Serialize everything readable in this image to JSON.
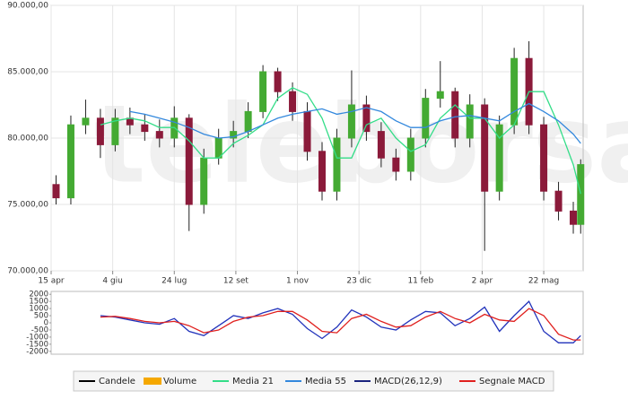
{
  "watermark": "teleborsa",
  "legend": [
    {
      "name": "Candele",
      "color": "#000000"
    },
    {
      "name": "Volume",
      "color": "#f5a800"
    },
    {
      "name": "Media 21",
      "color": "#33dd88"
    },
    {
      "name": "Media 55",
      "color": "#3388dd"
    },
    {
      "name": "MACD(26,12,9)",
      "color": "#1a237e"
    },
    {
      "name": "Segnale MACD",
      "color": "#e0201e"
    }
  ],
  "chart_data": [
    {
      "type": "candlestick",
      "up_color": "#44aa33",
      "down_color": "#8b1a3a",
      "xlim": [
        0,
        432
      ],
      "xticks": [
        {
          "value": 0,
          "label": "15 apr"
        },
        {
          "value": 50,
          "label": "4 giu"
        },
        {
          "value": 100,
          "label": "24 lug"
        },
        {
          "value": 150,
          "label": "12 set"
        },
        {
          "value": 200,
          "label": "1 nov"
        },
        {
          "value": 250,
          "label": "23 dic"
        },
        {
          "value": 300,
          "label": "11 feb"
        },
        {
          "value": 350,
          "label": "2 apr"
        },
        {
          "value": 400,
          "label": "22 mag"
        }
      ],
      "ylim": [
        70000,
        90000
      ],
      "yticks": [
        {
          "value": 70000,
          "label": "70.000,00"
        },
        {
          "value": 75000,
          "label": "75.000,00"
        },
        {
          "value": 80000,
          "label": "80.000,00"
        },
        {
          "value": 85000,
          "label": "85.000,00"
        },
        {
          "value": 90000,
          "label": "90.000,00"
        }
      ],
      "grid": true,
      "x": [
        4,
        16,
        28,
        40,
        52,
        64,
        76,
        88,
        100,
        112,
        124,
        136,
        148,
        160,
        172,
        184,
        196,
        208,
        220,
        232,
        244,
        256,
        268,
        280,
        292,
        304,
        316,
        328,
        340,
        352,
        364,
        376,
        388,
        400,
        412,
        424,
        430
      ],
      "open": [
        76500,
        75500,
        81000,
        81500,
        79500,
        81500,
        81000,
        80500,
        80000,
        81500,
        75000,
        78500,
        80000,
        80500,
        82000,
        85000,
        83500,
        82000,
        79000,
        76000,
        80000,
        82500,
        80500,
        78500,
        77500,
        80000,
        83000,
        83500,
        80000,
        82500,
        76000,
        81000,
        86000,
        81000,
        76000,
        74500,
        73500
      ],
      "high": [
        77200,
        81700,
        82900,
        82200,
        82200,
        82300,
        81800,
        81400,
        82400,
        81800,
        79200,
        80700,
        81300,
        82700,
        85500,
        85300,
        84200,
        82700,
        79700,
        80700,
        85100,
        83200,
        81200,
        79200,
        80700,
        83700,
        85800,
        83800,
        83300,
        83000,
        81700,
        86800,
        87300,
        81600,
        76700,
        75200,
        78400
      ],
      "low": [
        75000,
        75000,
        80300,
        78500,
        79000,
        80300,
        79800,
        79300,
        79300,
        73000,
        74300,
        78000,
        79300,
        80000,
        81500,
        82800,
        81300,
        78300,
        75300,
        75300,
        79300,
        79800,
        77800,
        76800,
        76800,
        79300,
        82300,
        79300,
        79300,
        71500,
        75300,
        80300,
        80300,
        75300,
        73800,
        72800,
        72800
      ],
      "close": [
        75500,
        81000,
        81500,
        79500,
        81500,
        81000,
        80500,
        80000,
        81500,
        75000,
        78500,
        80000,
        80500,
        82000,
        85000,
        83500,
        82000,
        79000,
        76000,
        80000,
        82500,
        80500,
        78500,
        77500,
        80000,
        83000,
        83500,
        80000,
        82500,
        76000,
        81000,
        86000,
        81000,
        76000,
        74500,
        73500,
        78000
      ],
      "series": [
        {
          "name": "Media 21",
          "color": "#33dd88",
          "values": [
            null,
            null,
            null,
            81000,
            81300,
            81500,
            81300,
            80800,
            80800,
            79800,
            78500,
            78500,
            79600,
            80200,
            81000,
            83000,
            83800,
            83300,
            81500,
            78500,
            78500,
            81000,
            81500,
            80000,
            79000,
            79500,
            81500,
            82500,
            81500,
            81500,
            80000,
            81000,
            83500,
            83500,
            81000,
            78000,
            75800
          ]
        },
        {
          "name": "Media 55",
          "color": "#3388dd",
          "values": [
            null,
            null,
            null,
            null,
            null,
            82000,
            81800,
            81500,
            81200,
            80800,
            80300,
            80000,
            80100,
            80500,
            81000,
            81500,
            81800,
            82000,
            82200,
            81800,
            82000,
            82300,
            82000,
            81300,
            80800,
            80800,
            81300,
            81600,
            81700,
            81500,
            81300,
            82000,
            82600,
            82000,
            81300,
            80300,
            79600
          ]
        }
      ]
    },
    {
      "type": "line",
      "xlim": [
        0,
        432
      ],
      "ylim": [
        -2200,
        2200
      ],
      "yticks": [
        2000,
        1500,
        1000,
        500,
        0,
        -500,
        -1000,
        -1500,
        -2000
      ],
      "x": [
        4,
        16,
        28,
        40,
        52,
        64,
        76,
        88,
        100,
        112,
        124,
        136,
        148,
        160,
        172,
        184,
        196,
        208,
        220,
        232,
        244,
        256,
        268,
        280,
        292,
        304,
        316,
        328,
        340,
        352,
        364,
        376,
        388,
        400,
        412,
        424,
        430
      ],
      "series": [
        {
          "name": "MACD(26,12,9)",
          "color": "#2233bb",
          "values": [
            null,
            null,
            null,
            500,
            400,
            200,
            0,
            -100,
            300,
            -600,
            -900,
            -200,
            500,
            300,
            700,
            1000,
            600,
            -400,
            -1100,
            -300,
            900,
            400,
            -300,
            -500,
            200,
            800,
            700,
            -200,
            300,
            1100,
            -600,
            500,
            1500,
            -600,
            -1400,
            -1400,
            -900
          ]
        },
        {
          "name": "Segnale MACD",
          "color": "#e0201e",
          "values": [
            null,
            null,
            null,
            400,
            450,
            300,
            100,
            0,
            100,
            -200,
            -700,
            -500,
            100,
            400,
            500,
            800,
            800,
            200,
            -600,
            -700,
            300,
            600,
            100,
            -300,
            -200,
            400,
            800,
            300,
            0,
            600,
            200,
            100,
            1000,
            500,
            -800,
            -1200,
            -1200
          ]
        }
      ]
    }
  ]
}
